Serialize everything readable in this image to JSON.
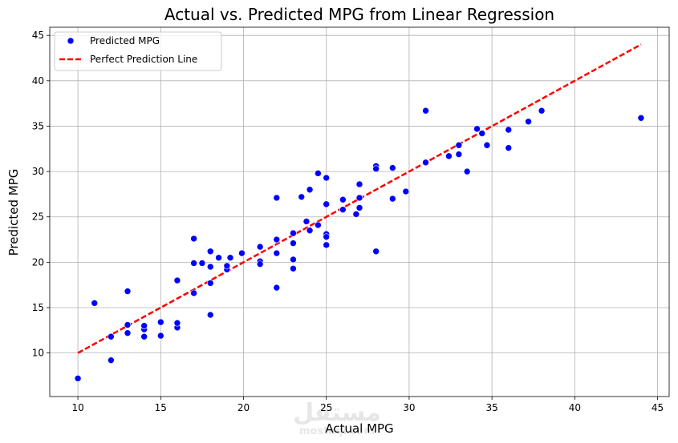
{
  "chart_data": {
    "type": "scatter",
    "title": "Actual vs. Predicted MPG from Linear Regression",
    "xlabel": "Actual MPG",
    "ylabel": "Predicted MPG",
    "xlim": [
      8.3,
      45.7
    ],
    "ylim": [
      5.2,
      45.9
    ],
    "xticks": [
      10,
      15,
      20,
      25,
      30,
      35,
      40,
      45
    ],
    "yticks": [
      10,
      15,
      20,
      25,
      30,
      35,
      40,
      45
    ],
    "grid": true,
    "legend_position": "top-left",
    "series": [
      {
        "name": "Predicted MPG",
        "kind": "scatter",
        "color": "#0000ff",
        "points": [
          [
            10,
            7.2
          ],
          [
            11,
            15.5
          ],
          [
            12,
            11.8
          ],
          [
            12,
            9.2
          ],
          [
            13,
            16.8
          ],
          [
            13,
            13.1
          ],
          [
            13,
            12.2
          ],
          [
            14,
            12.6
          ],
          [
            14,
            11.8
          ],
          [
            14,
            13.0
          ],
          [
            15,
            13.4
          ],
          [
            15,
            11.9
          ],
          [
            16,
            18.0
          ],
          [
            16,
            12.8
          ],
          [
            16,
            13.3
          ],
          [
            17,
            22.6
          ],
          [
            17,
            19.9
          ],
          [
            17,
            16.6
          ],
          [
            17.5,
            19.9
          ],
          [
            18,
            21.2
          ],
          [
            18,
            19.5
          ],
          [
            18,
            17.7
          ],
          [
            18,
            14.2
          ],
          [
            18.5,
            20.5
          ],
          [
            19,
            19.2
          ],
          [
            19,
            19.6
          ],
          [
            19.2,
            20.5
          ],
          [
            19.9,
            21.0
          ],
          [
            21,
            21.7
          ],
          [
            21,
            20.1
          ],
          [
            21,
            19.8
          ],
          [
            22,
            27.1
          ],
          [
            22,
            22.5
          ],
          [
            22,
            21.0
          ],
          [
            22,
            17.2
          ],
          [
            23,
            23.2
          ],
          [
            23,
            22.1
          ],
          [
            23,
            20.3
          ],
          [
            23,
            19.3
          ],
          [
            23.5,
            27.2
          ],
          [
            23.8,
            24.5
          ],
          [
            24,
            28.0
          ],
          [
            24,
            23.5
          ],
          [
            24.5,
            29.8
          ],
          [
            24.5,
            24.1
          ],
          [
            25,
            29.3
          ],
          [
            25,
            26.4
          ],
          [
            25,
            23.1
          ],
          [
            25,
            22.8
          ],
          [
            25,
            21.9
          ],
          [
            26,
            26.9
          ],
          [
            26,
            25.8
          ],
          [
            26.8,
            25.3
          ],
          [
            27,
            28.6
          ],
          [
            27,
            27.1
          ],
          [
            27,
            26.0
          ],
          [
            28,
            30.6
          ],
          [
            28,
            30.3
          ],
          [
            28,
            21.2
          ],
          [
            29,
            30.4
          ],
          [
            29,
            27.0
          ],
          [
            29.8,
            27.8
          ],
          [
            31,
            36.7
          ],
          [
            31,
            31.0
          ],
          [
            32.4,
            31.7
          ],
          [
            33,
            32.9
          ],
          [
            33,
            31.9
          ],
          [
            33.5,
            30.0
          ],
          [
            34.1,
            34.7
          ],
          [
            34.4,
            34.2
          ],
          [
            34.7,
            32.9
          ],
          [
            36,
            34.6
          ],
          [
            36,
            32.6
          ],
          [
            37.2,
            35.5
          ],
          [
            38,
            36.7
          ],
          [
            44,
            35.9
          ]
        ]
      },
      {
        "name": "Perfect Prediction Line",
        "kind": "line",
        "style": "dashed",
        "color": "#ff0000",
        "points": [
          [
            10,
            10
          ],
          [
            44,
            44
          ]
        ]
      }
    ]
  }
}
